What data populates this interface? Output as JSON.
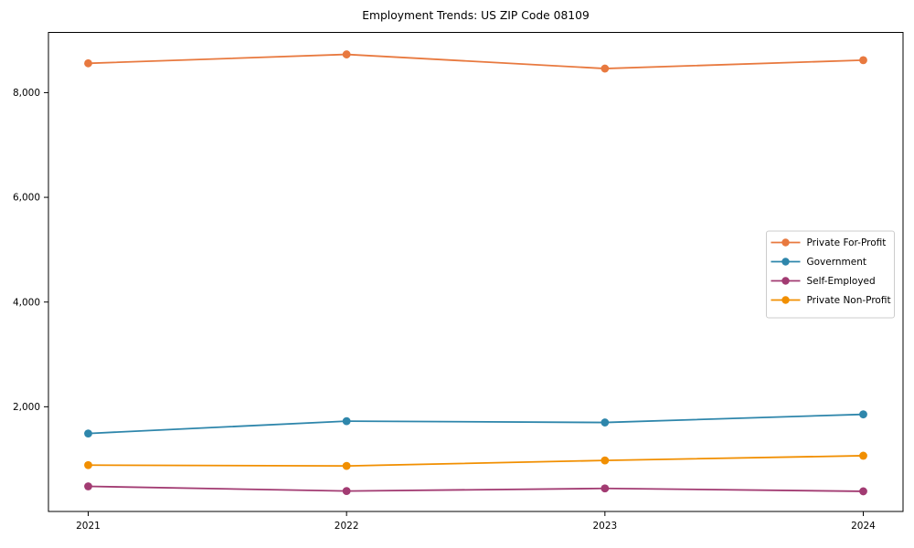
{
  "chart_data": {
    "type": "line",
    "title": "Employment Trends: US ZIP Code 08109",
    "xlabel": "",
    "ylabel": "",
    "x": [
      "2021",
      "2022",
      "2023",
      "2024"
    ],
    "series": [
      {
        "name": "Private For-Profit",
        "color": "#E8793F",
        "values": [
          8560,
          8730,
          8460,
          8620
        ]
      },
      {
        "name": "Government",
        "color": "#2E86AB",
        "values": [
          1490,
          1725,
          1700,
          1855
        ]
      },
      {
        "name": "Self-Employed",
        "color": "#A23B72",
        "values": [
          480,
          390,
          440,
          385
        ]
      },
      {
        "name": "Private Non-Profit",
        "color": "#F18F01",
        "values": [
          885,
          870,
          975,
          1065
        ]
      }
    ],
    "ylim": [
      0,
      9150
    ],
    "yticks": [
      2000,
      4000,
      6000,
      8000
    ],
    "ytick_labels": [
      "2,000",
      "4,000",
      "6,000",
      "8,000"
    ],
    "grid": false,
    "legend_position": "center right",
    "marker": "circle",
    "spine_color": "#000000",
    "legend_border_color": "#cccccc",
    "background_color": "#ffffff"
  }
}
